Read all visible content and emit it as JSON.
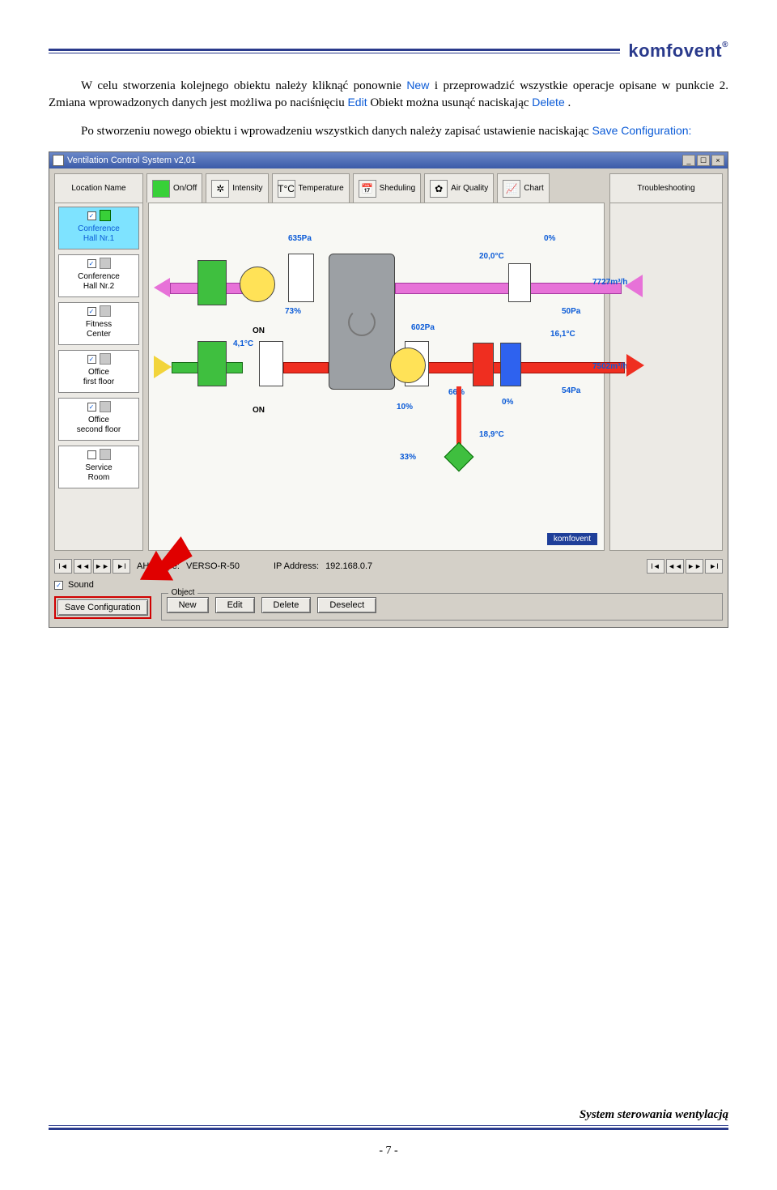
{
  "header": {
    "logo": "komfovent",
    "logo_sup": "®"
  },
  "para1": {
    "pre": "W celu stworzenia kolejnego obiektu należy kliknąć ponownie ",
    "kw1": "New",
    "mid1": " i przeprowadzić wszystkie operacje opisane w punkcie 2. Zmiana wprowadzonych danych jest możliwa po naciśnięciu ",
    "kw2": "Edit",
    "mid2": " Obiekt można usunąć naciskając ",
    "kw3": "Delete",
    "end": "."
  },
  "para2": {
    "pre": "Po stworzeniu nowego obiektu i wprowadzeniu wszystkich danych należy zapisać ustawienie naciskając ",
    "kw": "Save Configuration:"
  },
  "win": {
    "title": "Ventilation Control System v2,01",
    "tabs": {
      "loc": "Location Name",
      "onoff": "On/Off",
      "intensity": "Intensity",
      "temp": "Temperature",
      "sched": "Sheduling",
      "air": "Air Quality",
      "chart": "Chart",
      "trouble": "Troubleshooting"
    },
    "locations": [
      {
        "label": "Conference\nHall Nr.1",
        "checked": true,
        "on": true,
        "selected": true
      },
      {
        "label": "Conference\nHall Nr.2",
        "checked": true,
        "on": false,
        "selected": false
      },
      {
        "label": "Fitness\nCenter",
        "checked": true,
        "on": false,
        "selected": false
      },
      {
        "label": "Office\nfirst floor",
        "checked": true,
        "on": false,
        "selected": false
      },
      {
        "label": "Office\nsecond floor",
        "checked": true,
        "on": false,
        "selected": false
      },
      {
        "label": "Service\nRoom",
        "checked": false,
        "on": false,
        "selected": false
      }
    ],
    "diagram": {
      "dp1": "635Pa",
      "dp2": "602Pa",
      "t_top": "20,0°C",
      "pct0": "0%",
      "fan1_on": "ON",
      "fan1_pct": "73%",
      "t_in": "4,1°C",
      "fan2_on": "ON",
      "fan2_pct": "10%",
      "mix_pct": "66%",
      "flow_top": "7727m³/h",
      "flow_bot": "7502m³/h",
      "sp1": "50Pa",
      "sp2": "54Pa",
      "t_coil": "16,1°C",
      "heat_pct": "0%",
      "t_ret": "18,9°C",
      "pump_pct": "33%",
      "badge": "komfovent"
    },
    "info": {
      "type_lbl": "AHU Type:",
      "type_val": "VERSO-R-50",
      "ip_lbl": "IP Address:",
      "ip_val": "192.168.0.7"
    },
    "sound": "Sound",
    "object_legend": "Object",
    "buttons": {
      "save": "Save Configuration",
      "new": "New",
      "edit": "Edit",
      "del": "Delete",
      "deselect": "Deselect"
    }
  },
  "footer": {
    "text": "System sterowania wentylacją",
    "page": "- 7 -"
  }
}
